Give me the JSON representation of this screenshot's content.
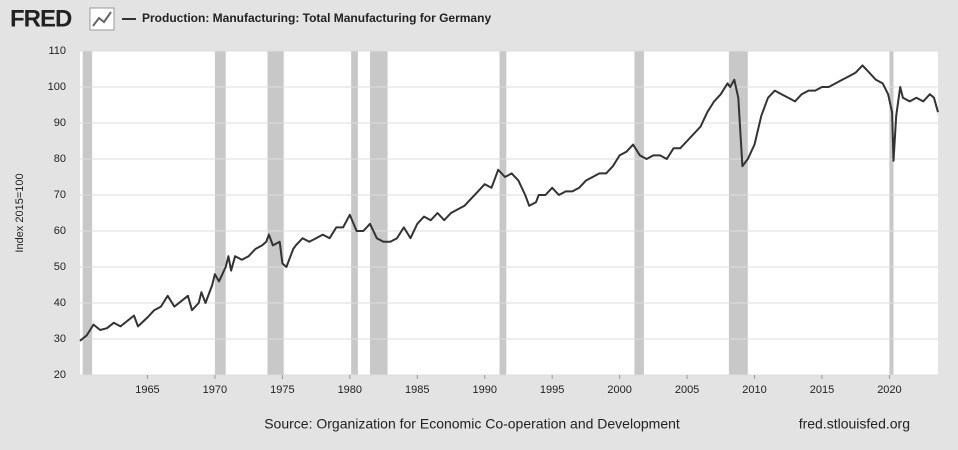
{
  "logo": "FRED",
  "chart_data": {
    "type": "line",
    "y_label": "Index 2015=100",
    "source": "Source: Organization for Economic Co-operation and Development",
    "site": "fred.stlouisfed.org",
    "x": [
      1960.0,
      1960.5,
      1961.0,
      1961.5,
      1962.0,
      1962.5,
      1963.0,
      1963.5,
      1964.0,
      1964.3,
      1965.0,
      1965.5,
      1966.0,
      1966.5,
      1967.0,
      1967.5,
      1968.0,
      1968.3,
      1968.8,
      1969.0,
      1969.3,
      1969.8,
      1970.0,
      1970.3,
      1970.8,
      1971.0,
      1971.2,
      1971.5,
      1972.0,
      1972.5,
      1973.0,
      1973.5,
      1973.8,
      1974.0,
      1974.3,
      1974.8,
      1975.0,
      1975.3,
      1975.8,
      1976.0,
      1976.5,
      1977.0,
      1977.5,
      1978.0,
      1978.5,
      1979.0,
      1979.5,
      1980.0,
      1980.5,
      1981.0,
      1981.5,
      1982.0,
      1982.5,
      1983.0,
      1983.5,
      1984.0,
      1984.5,
      1985.0,
      1985.5,
      1986.0,
      1986.5,
      1987.0,
      1987.5,
      1988.0,
      1988.5,
      1989.0,
      1989.5,
      1990.0,
      1990.5,
      1991.0,
      1991.5,
      1992.0,
      1992.5,
      1993.0,
      1993.3,
      1993.8,
      1994.0,
      1994.5,
      1995.0,
      1995.5,
      1996.0,
      1996.5,
      1997.0,
      1997.5,
      1998.0,
      1998.5,
      1999.0,
      1999.5,
      2000.0,
      2000.5,
      2001.0,
      2001.5,
      2002.0,
      2002.5,
      2003.0,
      2003.5,
      2004.0,
      2004.5,
      2005.0,
      2005.5,
      2006.0,
      2006.5,
      2007.0,
      2007.5,
      2008.0,
      2008.2,
      2008.5,
      2008.8,
      2009.1,
      2009.5,
      2010.0,
      2010.5,
      2011.0,
      2011.5,
      2012.0,
      2012.5,
      2013.0,
      2013.5,
      2014.0,
      2014.5,
      2015.0,
      2015.5,
      2016.0,
      2016.5,
      2017.0,
      2017.5,
      2018.0,
      2018.5,
      2019.0,
      2019.5,
      2019.9,
      2020.2,
      2020.3,
      2020.5,
      2020.8,
      2021.0,
      2021.5,
      2022.0,
      2022.5,
      2023.0,
      2023.3,
      2023.6
    ],
    "series": [
      {
        "name": "Production: Manufacturing: Total Manufacturing for Germany",
        "color": "#333333",
        "values": [
          29.5,
          31,
          34,
          32.5,
          33,
          34.5,
          33.5,
          35,
          36.5,
          33.5,
          36,
          38,
          39,
          42,
          39,
          40.5,
          42,
          38,
          40,
          43,
          40,
          45,
          48,
          46,
          50,
          53,
          49,
          53,
          52,
          53,
          55,
          56,
          57,
          59,
          56,
          57,
          51,
          50,
          55,
          56,
          58,
          57,
          58,
          59,
          58,
          61,
          61,
          64.5,
          60,
          60,
          62,
          58,
          57,
          57,
          58,
          61,
          58,
          62,
          64,
          63,
          65,
          63,
          65,
          66,
          67,
          69,
          71,
          73,
          72,
          77,
          75,
          76,
          74,
          70,
          67,
          68,
          70,
          70,
          72,
          70,
          71,
          71,
          72,
          74,
          75,
          76,
          76,
          78,
          81,
          82,
          84,
          81,
          80,
          81,
          81,
          80,
          83,
          83,
          85,
          87,
          89,
          93,
          96,
          98,
          101,
          100,
          102,
          97,
          78,
          80,
          84,
          92,
          97,
          99,
          98,
          97,
          96,
          98,
          99,
          99,
          100,
          100,
          101,
          102,
          103,
          104,
          106,
          104,
          102,
          101,
          98,
          93,
          79.5,
          92,
          100,
          97,
          96,
          97,
          96,
          98,
          97,
          93
        ]
      }
    ],
    "recessions": [
      [
        1960.2,
        1960.9
      ],
      [
        1970.0,
        1970.8
      ],
      [
        1973.9,
        1975.1
      ],
      [
        1980.1,
        1980.6
      ],
      [
        1981.5,
        1982.8
      ],
      [
        1991.1,
        1991.6
      ],
      [
        2001.1,
        2001.8
      ],
      [
        2008.1,
        2009.5
      ],
      [
        2020.0,
        2020.3
      ]
    ],
    "xlim": [
      1960,
      2023.6
    ],
    "xticks": [
      1965,
      1970,
      1975,
      1980,
      1985,
      1990,
      1995,
      2000,
      2005,
      2010,
      2015,
      2020
    ],
    "ylim": [
      20,
      110
    ],
    "yticks": [
      20,
      30,
      40,
      50,
      60,
      70,
      80,
      90,
      100,
      110
    ],
    "grid": true
  }
}
